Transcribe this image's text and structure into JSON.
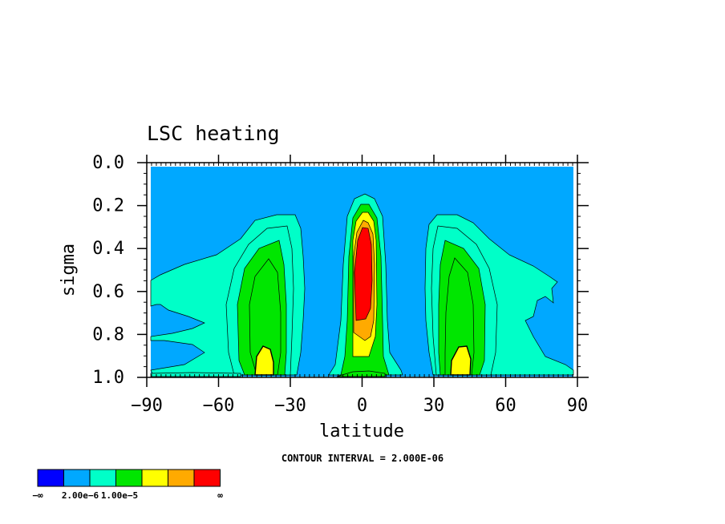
{
  "chart_data": {
    "type": "contour",
    "title": "LSC heating",
    "xlabel": "latitude",
    "ylabel": "sigma",
    "xlim": [
      -90,
      90
    ],
    "ylim": [
      1.0,
      0.0
    ],
    "x_ticks": [
      -90,
      -60,
      -30,
      0,
      30,
      60,
      90
    ],
    "x_tick_labels": [
      "−90",
      "−60",
      "−30",
      "0",
      "30",
      "60",
      "90"
    ],
    "y_ticks": [
      0.0,
      0.2,
      0.4,
      0.6,
      0.8,
      1.0
    ],
    "y_tick_labels": [
      "0.0",
      "0.2",
      "0.4",
      "0.6",
      "0.8",
      "1.0"
    ],
    "contour_interval_text": "CONTOUR INTERVAL = 2.000E-06",
    "colorbar": {
      "colors": [
        "#0000ff",
        "#00a8ff",
        "#00ffc8",
        "#00e600",
        "#ffff00",
        "#ffaa00",
        "#ff0000"
      ],
      "labels": [
        "−∞",
        "2.00e−6",
        "1.00e−5",
        "∞"
      ]
    },
    "features": [
      {
        "region": "background",
        "level": "0 to 2.00e-6",
        "color": "#00a8ff"
      },
      {
        "region": "southern subtropics/mid-latitudes",
        "lat_range": [
          -90,
          -15
        ],
        "sigma_range": [
          0.25,
          1.0
        ],
        "peak_lat": -40,
        "peak_sigma": 0.93,
        "peak_level": "> 1.00e-5"
      },
      {
        "region": "equatorial tower",
        "lat_range": [
          -10,
          10
        ],
        "sigma_range": [
          0.15,
          1.0
        ],
        "peak_lat": 0,
        "peak_sigma": 0.55,
        "peak_level": "highest"
      },
      {
        "region": "northern subtropics/mid-latitudes",
        "lat_range": [
          15,
          90
        ],
        "sigma_range": [
          0.25,
          1.0
        ],
        "peak_lat": 40,
        "peak_sigma": 0.93,
        "peak_level": "> 1.00e-5"
      }
    ]
  }
}
